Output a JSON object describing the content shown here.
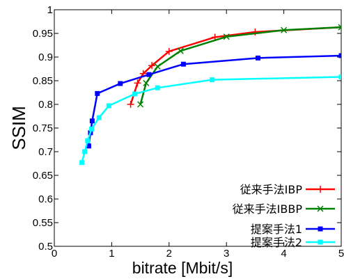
{
  "chart_data": {
    "type": "line",
    "title": "",
    "xlabel": "bitrate [Mbit/s]",
    "ylabel": "SSIM",
    "xlim": [
      0,
      5
    ],
    "ylim": [
      0.5,
      1
    ],
    "xticks": [
      "0",
      "1",
      "2",
      "3",
      "4",
      "5"
    ],
    "yticks": [
      "0.5",
      "0.55",
      "0.6",
      "0.65",
      "0.7",
      "0.75",
      "0.8",
      "0.85",
      "0.9",
      "0.95",
      "1"
    ],
    "grid": false,
    "legend_position": "bottom-right",
    "series": [
      {
        "name": "従来手法IBP",
        "color": "#ff0000",
        "marker": "plus",
        "x": [
          1.33,
          1.45,
          1.55,
          1.7,
          2.0,
          2.8,
          3.5,
          5.0
        ],
        "y": [
          0.8,
          0.845,
          0.865,
          0.882,
          0.912,
          0.942,
          0.953,
          0.963
        ]
      },
      {
        "name": "従来手法IBBP",
        "color": "#008000",
        "marker": "x",
        "x": [
          1.5,
          1.6,
          1.8,
          2.2,
          3.0,
          4.0,
          5.0
        ],
        "y": [
          0.8,
          0.845,
          0.88,
          0.913,
          0.943,
          0.957,
          0.963
        ]
      },
      {
        "name": "提案手法1",
        "color": "#0000ff",
        "marker": "square",
        "x": [
          0.6,
          0.63,
          0.66,
          0.75,
          1.15,
          1.65,
          2.25,
          3.55,
          5.0
        ],
        "y": [
          0.712,
          0.74,
          0.765,
          0.823,
          0.844,
          0.863,
          0.885,
          0.898,
          0.903
        ]
      },
      {
        "name": "提案手法2",
        "color": "#00ffff",
        "marker": "square",
        "x": [
          0.48,
          0.53,
          0.58,
          0.65,
          0.78,
          0.95,
          1.4,
          1.8,
          2.75,
          5.0
        ],
        "y": [
          0.677,
          0.7,
          0.723,
          0.748,
          0.772,
          0.797,
          0.822,
          0.835,
          0.852,
          0.858
        ]
      }
    ]
  }
}
